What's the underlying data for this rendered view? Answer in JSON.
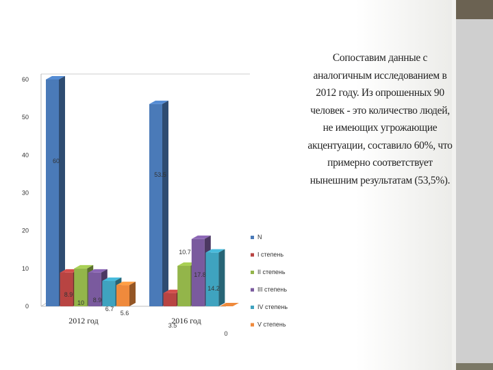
{
  "chart_data": {
    "type": "bar",
    "categories": [
      "2012 год",
      "2016 год"
    ],
    "series": [
      {
        "name": "N",
        "color": "#4a7ab8",
        "values": [
          60,
          53.5
        ],
        "labels": [
          "60",
          "53.5"
        ]
      },
      {
        "name": "I  степень",
        "color": "#b84442",
        "values": [
          8.9,
          3.5
        ],
        "labels": [
          "8.9",
          "3.5"
        ]
      },
      {
        "name": "II  степень",
        "color": "#93b54a",
        "values": [
          10,
          10.7
        ],
        "labels": [
          "10",
          "10.7"
        ]
      },
      {
        "name": "III степень",
        "color": "#7a5a9e",
        "values": [
          8.9,
          17.8
        ],
        "labels": [
          "8.9",
          "17.8"
        ]
      },
      {
        "name": "IV степень",
        "color": "#3fa3bf",
        "values": [
          6.7,
          14.2
        ],
        "labels": [
          "6.7",
          "14.2"
        ]
      },
      {
        "name": "V степень",
        "color": "#ef8a3c",
        "values": [
          5.6,
          0
        ],
        "labels": [
          "5.6",
          "0"
        ]
      }
    ],
    "ylim": [
      0,
      60
    ],
    "yticks": [
      "0",
      "10",
      "20",
      "30",
      "40",
      "50",
      "60"
    ],
    "grid": false,
    "legend": "right"
  },
  "note": "Сопоставим данные с аналогичным исследованием в 2012 году. Из опрошенных 90 человек - это количество людей, не имеющих угрожающие акцентуации, составило 60%, что примерно соответствует нынешним результатам (53,5%)."
}
